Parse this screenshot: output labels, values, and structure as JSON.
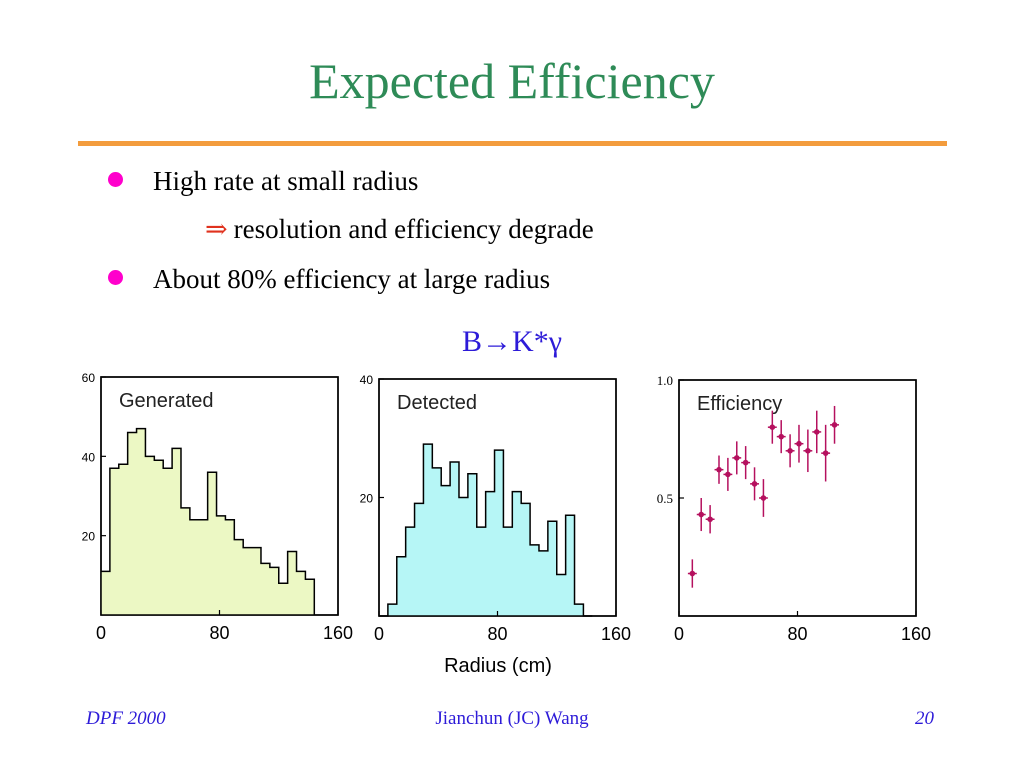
{
  "slide": {
    "title": "Expected Efficiency",
    "bullets": [
      {
        "text": "High rate at small radius"
      },
      {
        "text": "About 80% efficiency at large radius"
      }
    ],
    "sub_bullet": {
      "symbol": "⇒",
      "text": "resolution and efficiency degrade"
    },
    "decay": "B→K*γ",
    "footer": {
      "left": "DPF 2000",
      "center": "Jianchun (JC) Wang",
      "right": "20"
    },
    "x_axis_label": "Radius (cm)"
  },
  "colors": {
    "title": "#2e8b57",
    "rule": "#f39c3d",
    "bullet": "#ff00cc",
    "arrow": "#e0321e",
    "footer": "#2d1bd8",
    "generated_fill": "#ecf8c4",
    "detected_fill": "#b6f6f6",
    "efficiency_marker": "#b5105e"
  },
  "chart_data": [
    {
      "type": "bar",
      "title": "Generated",
      "xlim": [
        0,
        160
      ],
      "ylim": [
        0,
        60
      ],
      "xticks": [
        "0",
        "80",
        "160"
      ],
      "yticks": [
        "20",
        "40",
        "60"
      ],
      "bin_edges": [
        0,
        6,
        12,
        18,
        24,
        30,
        36,
        42,
        48,
        54,
        60,
        66,
        72,
        78,
        84,
        90,
        96,
        102,
        108,
        114,
        120,
        126,
        132,
        138,
        144
      ],
      "values": [
        11,
        37,
        38,
        46,
        47,
        40,
        39,
        37,
        42,
        27,
        24,
        24,
        36,
        25,
        24,
        19,
        17,
        17,
        13,
        12,
        8,
        16,
        11,
        9
      ]
    },
    {
      "type": "bar",
      "title": "Detected",
      "xlim": [
        0,
        160
      ],
      "ylim": [
        0,
        40
      ],
      "xticks": [
        "0",
        "80",
        "160"
      ],
      "yticks": [
        "20",
        "40"
      ],
      "bin_edges": [
        0,
        6,
        12,
        18,
        24,
        30,
        36,
        42,
        48,
        54,
        60,
        66,
        72,
        78,
        84,
        90,
        96,
        102,
        108,
        114,
        120,
        126,
        132,
        138,
        144
      ],
      "values": [
        0,
        2,
        10,
        15,
        19,
        29,
        25,
        22,
        26,
        20,
        24,
        15,
        21,
        28,
        15,
        21,
        19,
        12,
        11,
        16,
        7,
        17,
        2,
        0
      ]
    },
    {
      "type": "scatter",
      "title": "Efficiency",
      "xlim": [
        0,
        160
      ],
      "ylim": [
        0,
        1
      ],
      "xticks": [
        "0",
        "80",
        "160"
      ],
      "yticks": [
        "0.5",
        "1.0"
      ],
      "points": [
        {
          "x": 9,
          "y": 0.18,
          "err": 0.06
        },
        {
          "x": 15,
          "y": 0.43,
          "err": 0.07
        },
        {
          "x": 21,
          "y": 0.41,
          "err": 0.06
        },
        {
          "x": 27,
          "y": 0.62,
          "err": 0.06
        },
        {
          "x": 33,
          "y": 0.6,
          "err": 0.07
        },
        {
          "x": 39,
          "y": 0.67,
          "err": 0.07
        },
        {
          "x": 45,
          "y": 0.65,
          "err": 0.07
        },
        {
          "x": 51,
          "y": 0.56,
          "err": 0.07
        },
        {
          "x": 57,
          "y": 0.5,
          "err": 0.08
        },
        {
          "x": 63,
          "y": 0.8,
          "err": 0.07
        },
        {
          "x": 69,
          "y": 0.76,
          "err": 0.07
        },
        {
          "x": 75,
          "y": 0.7,
          "err": 0.07
        },
        {
          "x": 81,
          "y": 0.73,
          "err": 0.08
        },
        {
          "x": 87,
          "y": 0.7,
          "err": 0.09
        },
        {
          "x": 93,
          "y": 0.78,
          "err": 0.09
        },
        {
          "x": 99,
          "y": 0.69,
          "err": 0.12
        },
        {
          "x": 105,
          "y": 0.81,
          "err": 0.08
        }
      ]
    }
  ]
}
